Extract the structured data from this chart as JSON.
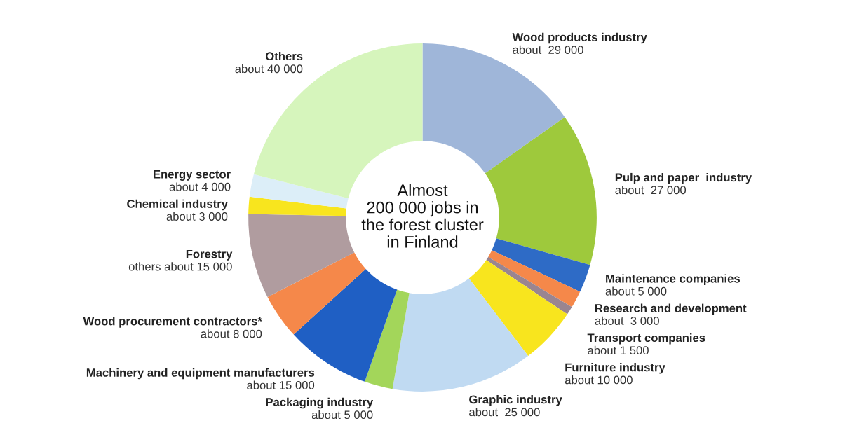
{
  "chart_data": {
    "type": "donut",
    "categories": [
      "Wood products industry",
      "Pulp and paper  industry",
      "Maintenance companies",
      "Research and development",
      "Transport companies",
      "Furniture industry",
      "Graphic industry",
      "Packaging industry",
      "Machinery and equipment manufacturers",
      "Wood procurement contractors*",
      "Forestry",
      "Chemical industry",
      "Energy sector",
      "Others"
    ],
    "values": [
      29000,
      27000,
      5000,
      3000,
      1500,
      10000,
      25000,
      5000,
      15000,
      8000,
      15000,
      3000,
      4000,
      40000
    ],
    "colors": [
      "#9fb6d9",
      "#9ec93c",
      "#2e6bc6",
      "#f5884a",
      "#9a8590",
      "#f8e51e",
      "#c0daf2",
      "#a3d65a",
      "#1f5fc4",
      "#f5884a",
      "#b09c9f",
      "#f8e51e",
      "#dceef8",
      "#d6f5bc"
    ],
    "value_labels": [
      "about  29 000",
      "about  27 000",
      "about 5 000",
      "about  3 000",
      "about 1 500",
      "about 10 000",
      "about  25 000",
      "about 5 000",
      "about 15 000",
      "about 8 000",
      "others about 15 000",
      "about 3 000",
      "about 4 000",
      "about 40 000"
    ],
    "annotations": [
      "Almost\n200 000 jobs in\nthe forest cluster\nin Finland"
    ]
  }
}
